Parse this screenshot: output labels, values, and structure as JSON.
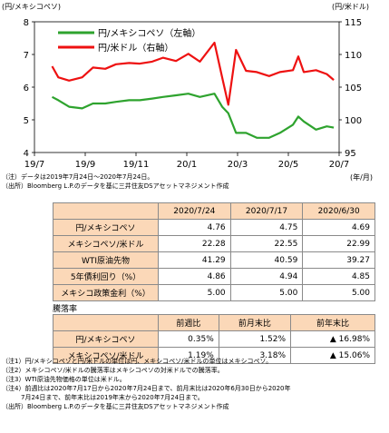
{
  "chart": {
    "left_unit": "(円/メキシコペソ)",
    "right_unit": "(円/米ドル)",
    "x_unit": "(年/月)",
    "legend": [
      "円/メキシコペソ（左軸）",
      "円/米ドル（右軸）"
    ],
    "note1": "（注）データは2019年7月24日～2020年7月24日。",
    "source1": "（出所）Bloomberg L.P.のデータを基に三井住友DSアセットマネジメント作成",
    "colors": {
      "peso": "#2ea32e",
      "usd": "#ee1111"
    }
  },
  "chart_data": {
    "type": "line",
    "x_ticks": [
      "19/7",
      "19/9",
      "19/11",
      "20/1",
      "20/3",
      "20/5",
      "20/7"
    ],
    "left_axis": {
      "ylim": [
        4,
        8
      ],
      "ticks": [
        "4",
        "5",
        "6",
        "7",
        "8"
      ]
    },
    "right_axis": {
      "ylim": [
        95,
        115
      ],
      "ticks": [
        "95",
        "100",
        "105",
        "110",
        "115"
      ]
    },
    "series": [
      {
        "name": "円/メキシコペソ（左軸）",
        "axis": "left",
        "x": [
          "2019-07-24",
          "2019-08-01",
          "2019-08-15",
          "2019-09-01",
          "2019-09-15",
          "2019-10-01",
          "2019-10-15",
          "2019-11-01",
          "2019-11-15",
          "2019-12-01",
          "2019-12-15",
          "2020-01-01",
          "2020-01-17",
          "2020-02-01",
          "2020-02-20",
          "2020-03-01",
          "2020-03-09",
          "2020-03-19",
          "2020-04-01",
          "2020-04-15",
          "2020-05-01",
          "2020-05-15",
          "2020-06-01",
          "2020-06-08",
          "2020-06-15",
          "2020-07-01",
          "2020-07-15",
          "2020-07-24"
        ],
        "values": [
          5.7,
          5.6,
          5.4,
          5.35,
          5.5,
          5.5,
          5.55,
          5.6,
          5.6,
          5.65,
          5.7,
          5.75,
          5.8,
          5.7,
          5.8,
          5.4,
          5.2,
          4.6,
          4.6,
          4.45,
          4.45,
          4.6,
          4.85,
          5.1,
          4.95,
          4.7,
          4.8,
          4.76
        ]
      },
      {
        "name": "円/米ドル（右軸）",
        "axis": "right",
        "x": [
          "2019-07-24",
          "2019-08-01",
          "2019-08-15",
          "2019-09-01",
          "2019-09-15",
          "2019-10-01",
          "2019-10-15",
          "2019-11-01",
          "2019-11-15",
          "2019-12-01",
          "2019-12-15",
          "2020-01-01",
          "2020-01-17",
          "2020-02-01",
          "2020-02-20",
          "2020-03-01",
          "2020-03-09",
          "2020-03-19",
          "2020-04-01",
          "2020-04-15",
          "2020-05-01",
          "2020-05-15",
          "2020-06-01",
          "2020-06-08",
          "2020-06-15",
          "2020-07-01",
          "2020-07-15",
          "2020-07-24"
        ],
        "values": [
          108.2,
          106.5,
          106.0,
          106.5,
          108.0,
          107.8,
          108.5,
          108.7,
          108.6,
          108.9,
          109.5,
          109.0,
          110.1,
          108.9,
          111.8,
          106.5,
          102.3,
          110.7,
          107.5,
          107.3,
          106.7,
          107.3,
          107.6,
          109.7,
          107.3,
          107.6,
          107.0,
          106.1
        ]
      }
    ]
  },
  "table1": {
    "headers": [
      "",
      "2020/7/24",
      "2020/7/17",
      "2020/6/30"
    ],
    "rows": [
      {
        "label": "円/メキシコペソ",
        "values": [
          "4.76",
          "4.75",
          "4.69"
        ]
      },
      {
        "label": "メキシコペソ/米ドル",
        "values": [
          "22.28",
          "22.55",
          "22.99"
        ]
      },
      {
        "label": "WTI原油先物",
        "values": [
          "41.29",
          "40.59",
          "39.27"
        ]
      },
      {
        "label": "5年債利回り（%）",
        "values": [
          "4.86",
          "4.94",
          "4.85"
        ]
      },
      {
        "label": "メキシコ政策金利（%）",
        "values": [
          "5.00",
          "5.00",
          "5.00"
        ]
      }
    ]
  },
  "table2": {
    "title": "騰落率",
    "headers": [
      "",
      "前週比",
      "前月末比",
      "前年末比"
    ],
    "rows": [
      {
        "label": "円/メキシコペソ",
        "values": [
          "0.35%",
          "1.52%",
          "▲ 16.98%"
        ]
      },
      {
        "label": "メキシコペソ/米ドル",
        "values": [
          "1.19%",
          "3.18%",
          "▲ 15.06%"
        ]
      }
    ]
  },
  "notes": [
    "（注1）円/メキシコペソと円/米ドルの単位は円、メキシコペソ/米ドルの単位はメキシコペソ。",
    "（注2）メキシコペソ/米ドルの騰落率はメキシコペソの対米ドルでの騰落率。",
    "（注3）WTI原油先物価格の単位は米ドル。",
    "（注4）前週比は2020年7月17日から2020年7月24日まで、前月末比は2020年6月30日から2020年",
    "　　　7月24日まで、前年末比は2019年末から2020年7月24日まで。",
    "（出所）Bloomberg L.P.のデータを基に三井住友DSアセットマネジメント作成"
  ]
}
